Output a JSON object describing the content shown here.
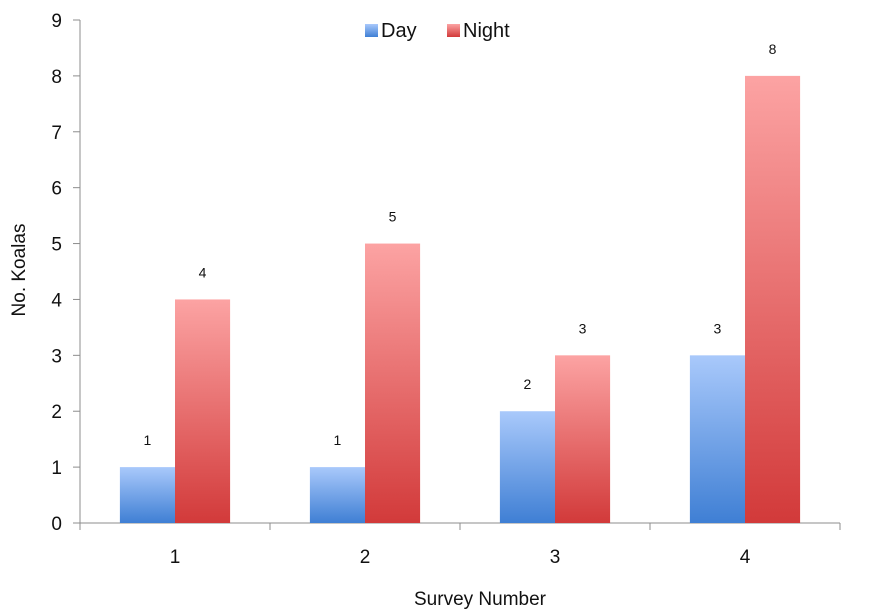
{
  "chart_data": {
    "type": "bar",
    "categories": [
      "1",
      "2",
      "3",
      "4"
    ],
    "series": [
      {
        "name": "Day",
        "values": [
          1,
          1,
          2,
          3
        ],
        "color": "#6fa0e6"
      },
      {
        "name": "Night",
        "values": [
          4,
          5,
          3,
          8
        ],
        "color": "#e05a5a"
      }
    ],
    "title": "",
    "xlabel": "Survey Number",
    "ylabel": "No. Koalas",
    "ylim": [
      0,
      9
    ],
    "yticks": [
      0,
      1,
      2,
      3,
      4,
      5,
      6,
      7,
      8,
      9
    ],
    "grid": false,
    "legend_position": "top-center",
    "data_labels": true
  }
}
